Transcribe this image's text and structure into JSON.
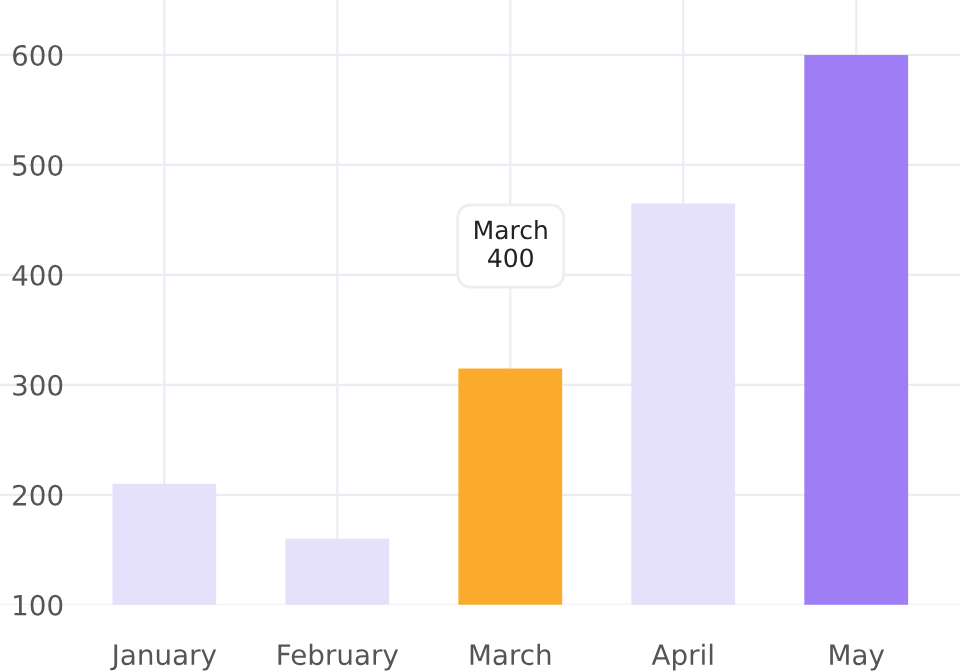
{
  "chart_data": {
    "type": "bar",
    "categories": [
      "January",
      "February",
      "March",
      "April",
      "May"
    ],
    "values": [
      210,
      160,
      315,
      465,
      600
    ],
    "colors": [
      "#e6e1fb",
      "#e6e1fb",
      "#fbab2c",
      "#e6e1fb",
      "#9f7ef5"
    ],
    "ylim": [
      100,
      650
    ],
    "yticks": [
      100,
      200,
      300,
      400,
      500,
      600
    ],
    "grid": true,
    "annotations": [
      "March\n400"
    ]
  }
}
